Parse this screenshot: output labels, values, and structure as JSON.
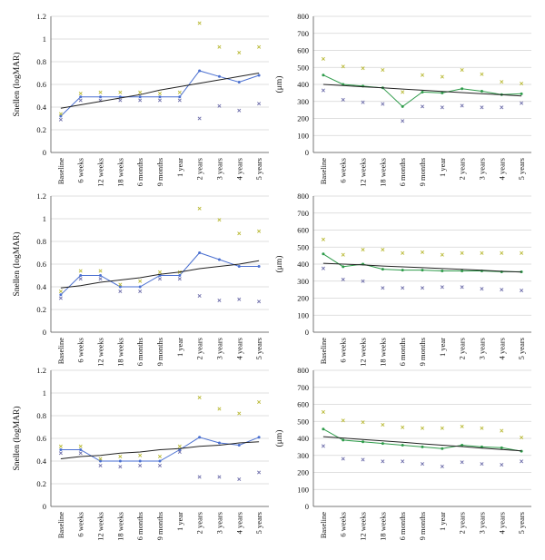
{
  "chart_data": [
    {
      "type": "line",
      "ylabel": "Snellen (logMAR)",
      "categories": [
        "Baseline",
        "6 weeks",
        "12 weeks",
        "18 weeks",
        "6 months",
        "9 months",
        "1 year",
        "2 years",
        "3 years",
        "4 years",
        "5 years"
      ],
      "ylim": [
        0,
        1.2
      ],
      "yticks": [
        "0",
        "0.2",
        "0.4",
        "0.6",
        "0.8",
        "1",
        "1.2"
      ],
      "grid": true,
      "series": [
        {
          "role": "mean",
          "color": "#4a6fd0",
          "values": [
            0.32,
            0.49,
            0.49,
            0.49,
            0.49,
            0.49,
            0.49,
            0.72,
            0.67,
            0.62,
            0.68
          ]
        },
        {
          "role": "upper",
          "color": "#b8b832",
          "values": [
            0.34,
            0.52,
            0.53,
            0.53,
            0.53,
            0.52,
            0.53,
            1.14,
            0.93,
            0.88,
            0.93
          ]
        },
        {
          "role": "lower",
          "color": "#6a6aa8",
          "values": [
            0.29,
            0.46,
            0.46,
            0.46,
            0.46,
            0.46,
            0.46,
            0.3,
            0.41,
            0.37,
            0.43
          ]
        },
        {
          "role": "trend",
          "color": "#222222",
          "values": [
            0.39,
            0.42,
            0.45,
            0.48,
            0.51,
            0.55,
            0.58,
            0.61,
            0.64,
            0.67,
            0.7
          ]
        }
      ]
    },
    {
      "type": "line",
      "ylabel": "(μm)",
      "categories": [
        "Baseline",
        "6 weeks",
        "12 weeks",
        "18 weeks",
        "6 months",
        "9 months",
        "1 year",
        "2 years",
        "3 years",
        "4 years",
        "5 years"
      ],
      "ylim": [
        0,
        800
      ],
      "yticks": [
        "0",
        "100",
        "200",
        "300",
        "400",
        "500",
        "600",
        "700",
        "800"
      ],
      "grid": true,
      "series": [
        {
          "role": "mean",
          "color": "#2e9b4a",
          "values": [
            455,
            400,
            390,
            380,
            270,
            355,
            350,
            375,
            360,
            340,
            345
          ]
        },
        {
          "role": "upper",
          "color": "#b8b832",
          "values": [
            550,
            505,
            495,
            485,
            355,
            455,
            445,
            485,
            460,
            415,
            405
          ]
        },
        {
          "role": "lower",
          "color": "#6a6aa8",
          "values": [
            365,
            310,
            295,
            285,
            185,
            270,
            265,
            275,
            265,
            265,
            290
          ]
        },
        {
          "role": "trend",
          "color": "#222222",
          "values": [
            400,
            393,
            386,
            380,
            373,
            366,
            359,
            352,
            345,
            339,
            332
          ]
        }
      ]
    },
    {
      "type": "line",
      "ylabel": "Snellen (logMAR)",
      "categories": [
        "Baseline",
        "6 weeks",
        "12 weeks",
        "18 weeks",
        "6 months",
        "9 months",
        "1 year",
        "2 years",
        "3 years",
        "4 years",
        "5 years"
      ],
      "ylim": [
        0,
        1.2
      ],
      "yticks": [
        "0",
        "0.2",
        "0.4",
        "0.6",
        "0.8",
        "1",
        "1.2"
      ],
      "grid": true,
      "series": [
        {
          "role": "mean",
          "color": "#4a6fd0",
          "values": [
            0.33,
            0.5,
            0.5,
            0.4,
            0.4,
            0.5,
            0.5,
            0.7,
            0.64,
            0.58,
            0.58
          ]
        },
        {
          "role": "upper",
          "color": "#b8b832",
          "values": [
            0.36,
            0.54,
            0.54,
            0.42,
            0.45,
            0.53,
            0.53,
            1.09,
            0.99,
            0.87,
            0.89
          ]
        },
        {
          "role": "lower",
          "color": "#6a6aa8",
          "values": [
            0.3,
            0.47,
            0.47,
            0.36,
            0.36,
            0.47,
            0.47,
            0.32,
            0.28,
            0.29,
            0.27
          ]
        },
        {
          "role": "trend",
          "color": "#222222",
          "values": [
            0.39,
            0.41,
            0.44,
            0.46,
            0.48,
            0.51,
            0.53,
            0.56,
            0.58,
            0.6,
            0.63
          ]
        }
      ]
    },
    {
      "type": "line",
      "ylabel": "(μm)",
      "categories": [
        "Baseline",
        "6 weeks",
        "12 weeks",
        "18 weeks",
        "6 months",
        "9 months",
        "1 year",
        "2 years",
        "3 years",
        "4 years",
        "5 years"
      ],
      "ylim": [
        0,
        800
      ],
      "yticks": [
        "0",
        "100",
        "200",
        "300",
        "400",
        "500",
        "600",
        "700",
        "800"
      ],
      "grid": true,
      "series": [
        {
          "role": "mean",
          "color": "#2e9b4a",
          "values": [
            460,
            385,
            400,
            370,
            365,
            365,
            360,
            360,
            360,
            355,
            355
          ]
        },
        {
          "role": "upper",
          "color": "#b8b832",
          "values": [
            545,
            455,
            485,
            485,
            465,
            470,
            455,
            465,
            465,
            465,
            465
          ]
        },
        {
          "role": "lower",
          "color": "#6a6aa8",
          "values": [
            375,
            310,
            300,
            260,
            260,
            260,
            265,
            265,
            255,
            250,
            245
          ]
        },
        {
          "role": "trend",
          "color": "#222222",
          "values": [
            405,
            400,
            395,
            389,
            384,
            379,
            374,
            369,
            364,
            358,
            353
          ]
        }
      ]
    },
    {
      "type": "line",
      "ylabel": "Snellen (logMAR)",
      "categories": [
        "Baseline",
        "6 weeks",
        "12 weeks",
        "18 weeks",
        "6 months",
        "9 months",
        "1 year",
        "2 years",
        "3 years",
        "4 years",
        "5 years"
      ],
      "ylim": [
        0,
        1.2
      ],
      "yticks": [
        "0",
        "0.2",
        "0.4",
        "0.6",
        "0.8",
        "1",
        "1.2"
      ],
      "grid": true,
      "series": [
        {
          "role": "mean",
          "color": "#4a6fd0",
          "values": [
            0.5,
            0.5,
            0.4,
            0.4,
            0.4,
            0.4,
            0.5,
            0.61,
            0.56,
            0.54,
            0.61
          ]
        },
        {
          "role": "upper",
          "color": "#b8b832",
          "values": [
            0.53,
            0.53,
            0.42,
            0.44,
            0.45,
            0.44,
            0.53,
            0.96,
            0.86,
            0.82,
            0.92
          ]
        },
        {
          "role": "lower",
          "color": "#6a6aa8",
          "values": [
            0.47,
            0.47,
            0.36,
            0.35,
            0.36,
            0.36,
            0.48,
            0.26,
            0.26,
            0.24,
            0.3
          ]
        },
        {
          "role": "trend",
          "color": "#222222",
          "values": [
            0.42,
            0.44,
            0.45,
            0.47,
            0.48,
            0.5,
            0.51,
            0.53,
            0.54,
            0.56,
            0.57
          ]
        }
      ]
    },
    {
      "type": "line",
      "ylabel": "(μm)",
      "categories": [
        "Baseline",
        "6 weeks",
        "12 weeks",
        "18 weeks",
        "6 months",
        "9 months",
        "1 year",
        "2 years",
        "3 years",
        "4 years",
        "5 years"
      ],
      "ylim": [
        0,
        800
      ],
      "yticks": [
        "0",
        "100",
        "200",
        "300",
        "400",
        "500",
        "600",
        "700",
        "800"
      ],
      "grid": true,
      "series": [
        {
          "role": "mean",
          "color": "#2e9b4a",
          "values": [
            455,
            390,
            380,
            370,
            360,
            350,
            340,
            360,
            350,
            345,
            325
          ]
        },
        {
          "role": "upper",
          "color": "#b8b832",
          "values": [
            555,
            505,
            495,
            480,
            465,
            460,
            460,
            470,
            460,
            445,
            405
          ]
        },
        {
          "role": "lower",
          "color": "#6a6aa8",
          "values": [
            355,
            280,
            275,
            265,
            265,
            250,
            235,
            260,
            250,
            245,
            265
          ]
        },
        {
          "role": "trend",
          "color": "#222222",
          "values": [
            410,
            402,
            393,
            385,
            377,
            368,
            360,
            352,
            343,
            335,
            327
          ]
        }
      ]
    }
  ]
}
